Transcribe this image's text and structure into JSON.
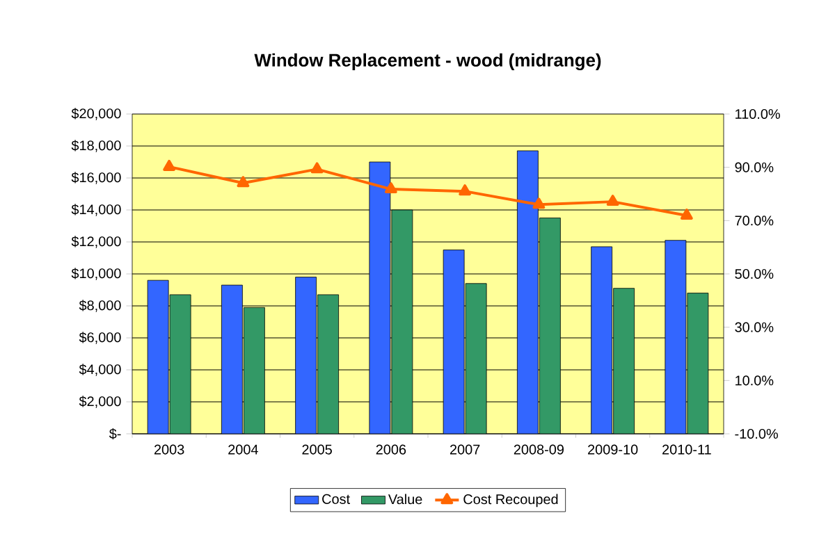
{
  "chart_data": {
    "type": "bar",
    "title": "Window Replacement - wood (midrange)",
    "categories": [
      "2003",
      "2004",
      "2005",
      "2006",
      "2007",
      "2008-09",
      "2009-10",
      "2010-11"
    ],
    "series": [
      {
        "name": "Cost",
        "color": "#3366ff",
        "values": [
          9600,
          9300,
          9800,
          17000,
          11500,
          17700,
          11700,
          12100
        ]
      },
      {
        "name": "Value",
        "color": "#339966",
        "values": [
          8700,
          7900,
          8700,
          14000,
          9400,
          13500,
          9100,
          8800
        ]
      },
      {
        "name": "Cost Recouped",
        "type": "line",
        "axis": "y2",
        "color": "#ff6600",
        "values": [
          90.2,
          84.1,
          89.3,
          81.8,
          81.0,
          76.0,
          77.1,
          71.9
        ]
      }
    ],
    "ylim": [
      0,
      20000
    ],
    "yticks": [
      {
        "value": 0,
        "label": "$-"
      },
      {
        "value": 2000,
        "label": "$2,000"
      },
      {
        "value": 4000,
        "label": "$4,000"
      },
      {
        "value": 6000,
        "label": "$6,000"
      },
      {
        "value": 8000,
        "label": "$8,000"
      },
      {
        "value": 10000,
        "label": "$10,000"
      },
      {
        "value": 12000,
        "label": "$12,000"
      },
      {
        "value": 14000,
        "label": "$14,000"
      },
      {
        "value": 16000,
        "label": "$16,000"
      },
      {
        "value": 18000,
        "label": "$18,000"
      },
      {
        "value": 20000,
        "label": "$20,000"
      }
    ],
    "y2lim": [
      -10,
      110
    ],
    "y2ticks": [
      {
        "value": -10,
        "label": "-10.0%"
      },
      {
        "value": 10,
        "label": "10.0%"
      },
      {
        "value": 30,
        "label": "30.0%"
      },
      {
        "value": 50,
        "label": "50.0%"
      },
      {
        "value": 70,
        "label": "70.0%"
      },
      {
        "value": 90,
        "label": "90.0%"
      },
      {
        "value": 110,
        "label": "110.0%"
      }
    ],
    "grid": "y",
    "legend": "bottom",
    "marker": "triangle",
    "line_style": "solid"
  }
}
